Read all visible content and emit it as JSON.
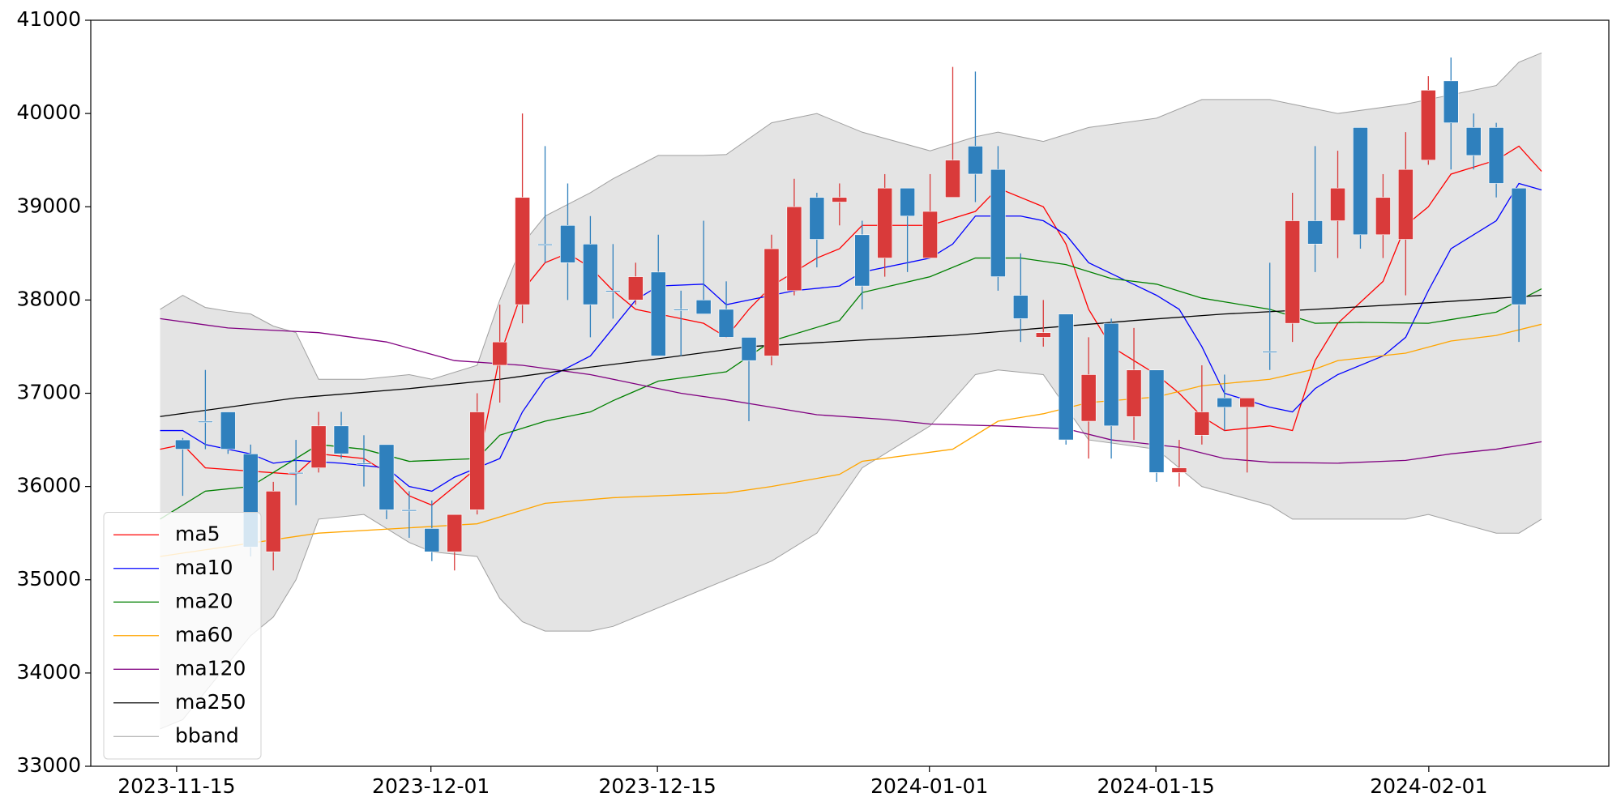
{
  "chart_data": {
    "type": "candlestick",
    "x": [
      0,
      1,
      2,
      3,
      4,
      5,
      6,
      7,
      8,
      9,
      10,
      11,
      12,
      13,
      14,
      15,
      16,
      17,
      18,
      19,
      20,
      21,
      22,
      23,
      24,
      25,
      26,
      27,
      28,
      29,
      30,
      31,
      32,
      33,
      34,
      35,
      36,
      37,
      38,
      39,
      40,
      41,
      42,
      43,
      44,
      45,
      46,
      47,
      48,
      49,
      50,
      51,
      52,
      53,
      54,
      55,
      56,
      57,
      58,
      59
    ],
    "open": [
      36500,
      36700,
      36800,
      36350,
      35300,
      36150,
      36200,
      36650,
      36250,
      36450,
      35750,
      35550,
      35300,
      35750,
      37300,
      37950,
      38600,
      38800,
      38600,
      38100,
      38000,
      38300,
      37900,
      38000,
      37900,
      37600,
      37400,
      38100,
      39100,
      39050,
      38700,
      38450,
      39200,
      38450,
      39100,
      39650,
      39400,
      38050,
      37600,
      37850,
      36700,
      37750,
      36750,
      37250,
      36150,
      36550,
      36950,
      36850,
      37450,
      37750,
      38850,
      38850,
      39850,
      38700,
      38650,
      39500,
      40350,
      39850,
      39850,
      39200
    ],
    "high": [
      36520,
      37250,
      36800,
      36450,
      36050,
      36500,
      36800,
      36800,
      36550,
      36450,
      35950,
      35850,
      35700,
      37000,
      37950,
      40000,
      39650,
      39250,
      38900,
      38600,
      38400,
      38700,
      38100,
      38850,
      38200,
      37600,
      38700,
      39300,
      39150,
      39250,
      38850,
      39350,
      39200,
      39350,
      40500,
      40450,
      39650,
      38500,
      38000,
      37850,
      37600,
      37800,
      37700,
      37250,
      36500,
      37300,
      37200,
      36950,
      38400,
      39150,
      39650,
      39600,
      39850,
      39350,
      39800,
      40400,
      40600,
      40000,
      39900,
      39200
    ],
    "low": [
      35900,
      36400,
      36350,
      35250,
      35100,
      35800,
      36150,
      36300,
      36000,
      35650,
      35450,
      35200,
      35100,
      35700,
      36900,
      37750,
      38400,
      38000,
      37600,
      37800,
      37950,
      37400,
      37400,
      37850,
      37600,
      36700,
      37300,
      38050,
      38350,
      38800,
      37900,
      38250,
      38300,
      38450,
      39100,
      39050,
      38100,
      37550,
      37500,
      36450,
      36300,
      36300,
      36500,
      36050,
      36000,
      36450,
      36600,
      36150,
      37250,
      37550,
      38300,
      38450,
      38550,
      38450,
      38050,
      39450,
      39400,
      39400,
      39100,
      37550
    ],
    "close": [
      36400,
      36700,
      36400,
      35350,
      35950,
      36150,
      36650,
      36350,
      36250,
      35750,
      35750,
      35300,
      35700,
      36800,
      37550,
      39100,
      38600,
      38400,
      37950,
      38100,
      38250,
      37400,
      37900,
      37850,
      37600,
      37350,
      38550,
      39000,
      38650,
      39100,
      38150,
      39200,
      38900,
      38950,
      39500,
      39350,
      38250,
      37800,
      37650,
      36500,
      37200,
      36650,
      37250,
      36150,
      36200,
      36800,
      36850,
      36950,
      37450,
      38850,
      38600,
      39200,
      38700,
      39100,
      39400,
      40250,
      39900,
      39550,
      39250,
      37950
    ],
    "up_color": "#d93a3a",
    "down_color": "#2f80bd",
    "lines": [
      {
        "name": "ma5",
        "color": "#ff0000",
        "x": [
          -1,
          0,
          1,
          5,
          6,
          8,
          9,
          10,
          11,
          13,
          14,
          15,
          16,
          17,
          18,
          19,
          20,
          21,
          23,
          24,
          25,
          26,
          28,
          29,
          30,
          33,
          35,
          36,
          38,
          39,
          40,
          41,
          43,
          44,
          45,
          46,
          48,
          49,
          50,
          51,
          53,
          54,
          55,
          56,
          58,
          59,
          60
        ],
        "values": [
          36400,
          36450,
          36200,
          36130,
          36350,
          36300,
          36150,
          35900,
          35800,
          36200,
          37400,
          38100,
          38400,
          38500,
          38350,
          38100,
          37900,
          37850,
          37750,
          37600,
          37900,
          38150,
          38450,
          38550,
          38800,
          38800,
          38950,
          39200,
          39000,
          38600,
          37900,
          37500,
          37200,
          37000,
          36750,
          36600,
          36650,
          36600,
          37350,
          37750,
          38200,
          38800,
          39000,
          39350,
          39500,
          39650,
          39380
        ]
      },
      {
        "name": "ma10",
        "color": "#0000ff",
        "x": [
          -1,
          0,
          1,
          2,
          3,
          4,
          5,
          7,
          9,
          10,
          11,
          12,
          14,
          15,
          16,
          18,
          19,
          20,
          21,
          23,
          24,
          25,
          27,
          29,
          30,
          33,
          34,
          35,
          37,
          38,
          39,
          40,
          43,
          44,
          45,
          46,
          48,
          49,
          50,
          51,
          53,
          54,
          55,
          56,
          58,
          59,
          60
        ],
        "values": [
          36600,
          36600,
          36450,
          36400,
          36350,
          36250,
          36280,
          36250,
          36200,
          36000,
          35950,
          36100,
          36300,
          36800,
          37150,
          37400,
          37700,
          38000,
          38150,
          38170,
          37950,
          38000,
          38100,
          38150,
          38300,
          38450,
          38600,
          38900,
          38900,
          38850,
          38700,
          38400,
          38050,
          37900,
          37500,
          37000,
          36850,
          36800,
          37050,
          37200,
          37400,
          37600,
          38100,
          38550,
          38850,
          39250,
          39180
        ]
      },
      {
        "name": "ma20",
        "color": "#008000",
        "x": [
          -1,
          1,
          3,
          6,
          8,
          10,
          13,
          14,
          16,
          18,
          19,
          21,
          24,
          26,
          29,
          30,
          33,
          35,
          37,
          39,
          41,
          43,
          45,
          48,
          50,
          52,
          55,
          58,
          60
        ],
        "values": [
          35650,
          35950,
          36000,
          36450,
          36400,
          36270,
          36300,
          36550,
          36700,
          36800,
          36920,
          37130,
          37230,
          37560,
          37780,
          38080,
          38250,
          38450,
          38450,
          38380,
          38230,
          38170,
          38020,
          37900,
          37750,
          37760,
          37750,
          37870,
          38120
        ]
      },
      {
        "name": "ma60",
        "color": "#ffa500",
        "x": [
          -1,
          6,
          13,
          16,
          19,
          24,
          26,
          29,
          30,
          34,
          36,
          38,
          40,
          43,
          45,
          48,
          50,
          51,
          54,
          56,
          58,
          60
        ],
        "values": [
          35250,
          35500,
          35600,
          35820,
          35880,
          35930,
          36000,
          36130,
          36270,
          36400,
          36700,
          36780,
          36900,
          36960,
          37080,
          37150,
          37260,
          37350,
          37430,
          37560,
          37620,
          37740
        ]
      },
      {
        "name": "ma120",
        "color": "#800080",
        "x": [
          -1,
          2,
          6,
          9,
          12,
          15,
          18,
          20,
          22,
          24,
          26,
          28,
          31,
          33,
          36,
          39,
          41,
          44,
          46,
          48,
          51,
          54,
          56,
          58,
          60
        ],
        "values": [
          37800,
          37700,
          37650,
          37550,
          37350,
          37300,
          37200,
          37100,
          37000,
          36930,
          36850,
          36770,
          36720,
          36670,
          36650,
          36620,
          36500,
          36420,
          36300,
          36260,
          36250,
          36280,
          36350,
          36400,
          36480
        ]
      },
      {
        "name": "ma250",
        "color": "#000000",
        "x": [
          -1,
          5,
          10,
          14,
          17,
          21,
          25,
          30,
          34,
          37,
          42,
          46,
          50,
          55,
          60
        ],
        "values": [
          36750,
          36950,
          37050,
          37150,
          37250,
          37370,
          37500,
          37570,
          37620,
          37680,
          37780,
          37850,
          37900,
          37970,
          38050
        ]
      }
    ],
    "band": {
      "name": "bband",
      "color": "#a0a0a0",
      "fill_color": "#e4e4e4",
      "x": [
        -1,
        0,
        1,
        2,
        3,
        4,
        5,
        6,
        8,
        10,
        11,
        13,
        14,
        15,
        16,
        18,
        19,
        21,
        23,
        24,
        26,
        28,
        30,
        33,
        35,
        36,
        38,
        40,
        43,
        45,
        48,
        49,
        51,
        54,
        55,
        58,
        59,
        60
      ],
      "upper": [
        37900,
        38050,
        37920,
        37880,
        37850,
        37720,
        37650,
        37150,
        37150,
        37200,
        37150,
        37300,
        38000,
        38600,
        38900,
        39150,
        39300,
        39550,
        39550,
        39560,
        39900,
        40000,
        39800,
        39600,
        39750,
        39800,
        39700,
        39850,
        39950,
        40150,
        40150,
        40100,
        40000,
        40100,
        40150,
        40300,
        40550,
        40650
      ],
      "lower": [
        33400,
        33500,
        33800,
        34100,
        34400,
        34600,
        35000,
        35650,
        35700,
        35400,
        35300,
        35250,
        34800,
        34550,
        34450,
        34450,
        34500,
        34700,
        34900,
        35000,
        35200,
        35500,
        36200,
        36650,
        37200,
        37250,
        37200,
        36500,
        36400,
        36000,
        35800,
        35650,
        35650,
        35650,
        35700,
        35500,
        35500,
        35650
      ]
    },
    "xlim": [
      -4.06,
      62.97
    ],
    "xticks": [
      {
        "value": -0.27,
        "label": "2023-11-15"
      },
      {
        "value": 10.96,
        "label": "2023-12-01"
      },
      {
        "value": 20.96,
        "label": "2023-12-15"
      },
      {
        "value": 32.97,
        "label": "2024-01-01"
      },
      {
        "value": 42.97,
        "label": "2024-01-15"
      },
      {
        "value": 55.02,
        "label": "2024-02-01"
      }
    ],
    "ylim": [
      33000,
      41000
    ],
    "yticks": [
      33000,
      34000,
      35000,
      36000,
      37000,
      38000,
      39000,
      40000,
      41000
    ],
    "legend": "lower left"
  }
}
